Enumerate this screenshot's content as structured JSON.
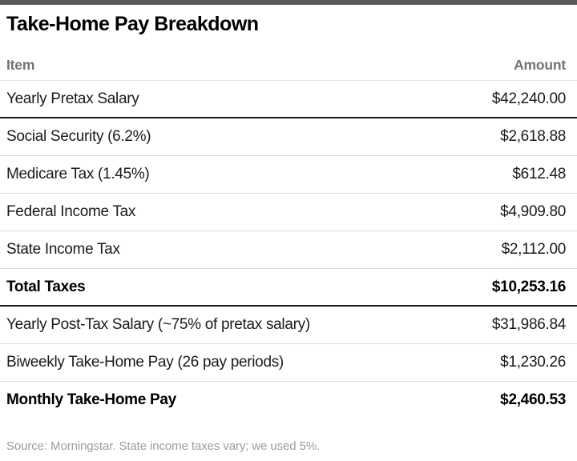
{
  "page": {
    "title": "Take-Home Pay Breakdown",
    "source_note": "Source: Morningstar. State income taxes vary; we used 5%."
  },
  "table": {
    "columns": [
      "Item",
      "Amount"
    ],
    "rows": [
      {
        "item": "Yearly Pretax Salary",
        "amount": "$42,240.00",
        "bold": false
      },
      {
        "item": "Social Security (6.2%)",
        "amount": "$2,618.88",
        "bold": false
      },
      {
        "item": "Medicare Tax (1.45%)",
        "amount": "$612.48",
        "bold": false
      },
      {
        "item": "Federal Income Tax",
        "amount": "$4,909.80",
        "bold": false
      },
      {
        "item": "State Income Tax",
        "amount": "$2,112.00",
        "bold": false
      },
      {
        "item": "Total Taxes",
        "amount": "$10,253.16",
        "bold": true
      },
      {
        "item": "Yearly Post-Tax Salary (~75% of pretax salary)",
        "amount": "$31,986.84",
        "bold": false
      },
      {
        "item": "Biweekly Take-Home Pay (26 pay periods)",
        "amount": "$1,230.26",
        "bold": false
      },
      {
        "item": "Monthly Take-Home Pay",
        "amount": "$2,460.53",
        "bold": true
      }
    ]
  },
  "colors": {
    "top_bar": "#58585a",
    "header_text": "#737373",
    "body_text": "#1a1a1a",
    "bold_text": "#000000",
    "rule_light": "#dcdcdc",
    "rule_dark": "#191919",
    "source_text": "#9c9c9c"
  },
  "chart_data": {
    "type": "table",
    "title": "Take-Home Pay Breakdown",
    "columns": [
      "Item",
      "Amount"
    ],
    "rows": [
      [
        "Yearly Pretax Salary",
        "$42,240.00"
      ],
      [
        "Social Security (6.2%)",
        "$2,618.88"
      ],
      [
        "Medicare Tax (1.45%)",
        "$612.48"
      ],
      [
        "Federal Income Tax",
        "$4,909.80"
      ],
      [
        "State Income Tax",
        "$2,112.00"
      ],
      [
        "Total Taxes",
        "$10,253.16"
      ],
      [
        "Yearly Post-Tax Salary (~75% of pretax salary)",
        "$31,986.84"
      ],
      [
        "Biweekly Take-Home Pay (26 pay periods)",
        "$1,230.26"
      ],
      [
        "Monthly Take-Home Pay",
        "$2,460.53"
      ]
    ],
    "values": [
      42240.0,
      2618.88,
      612.48,
      4909.8,
      2112.0,
      10253.16,
      31986.84,
      1230.26,
      2460.53
    ],
    "bold_rows": [
      "Total Taxes",
      "Monthly Take-Home Pay"
    ],
    "source": "Source: Morningstar. State income taxes vary; we used 5%."
  }
}
